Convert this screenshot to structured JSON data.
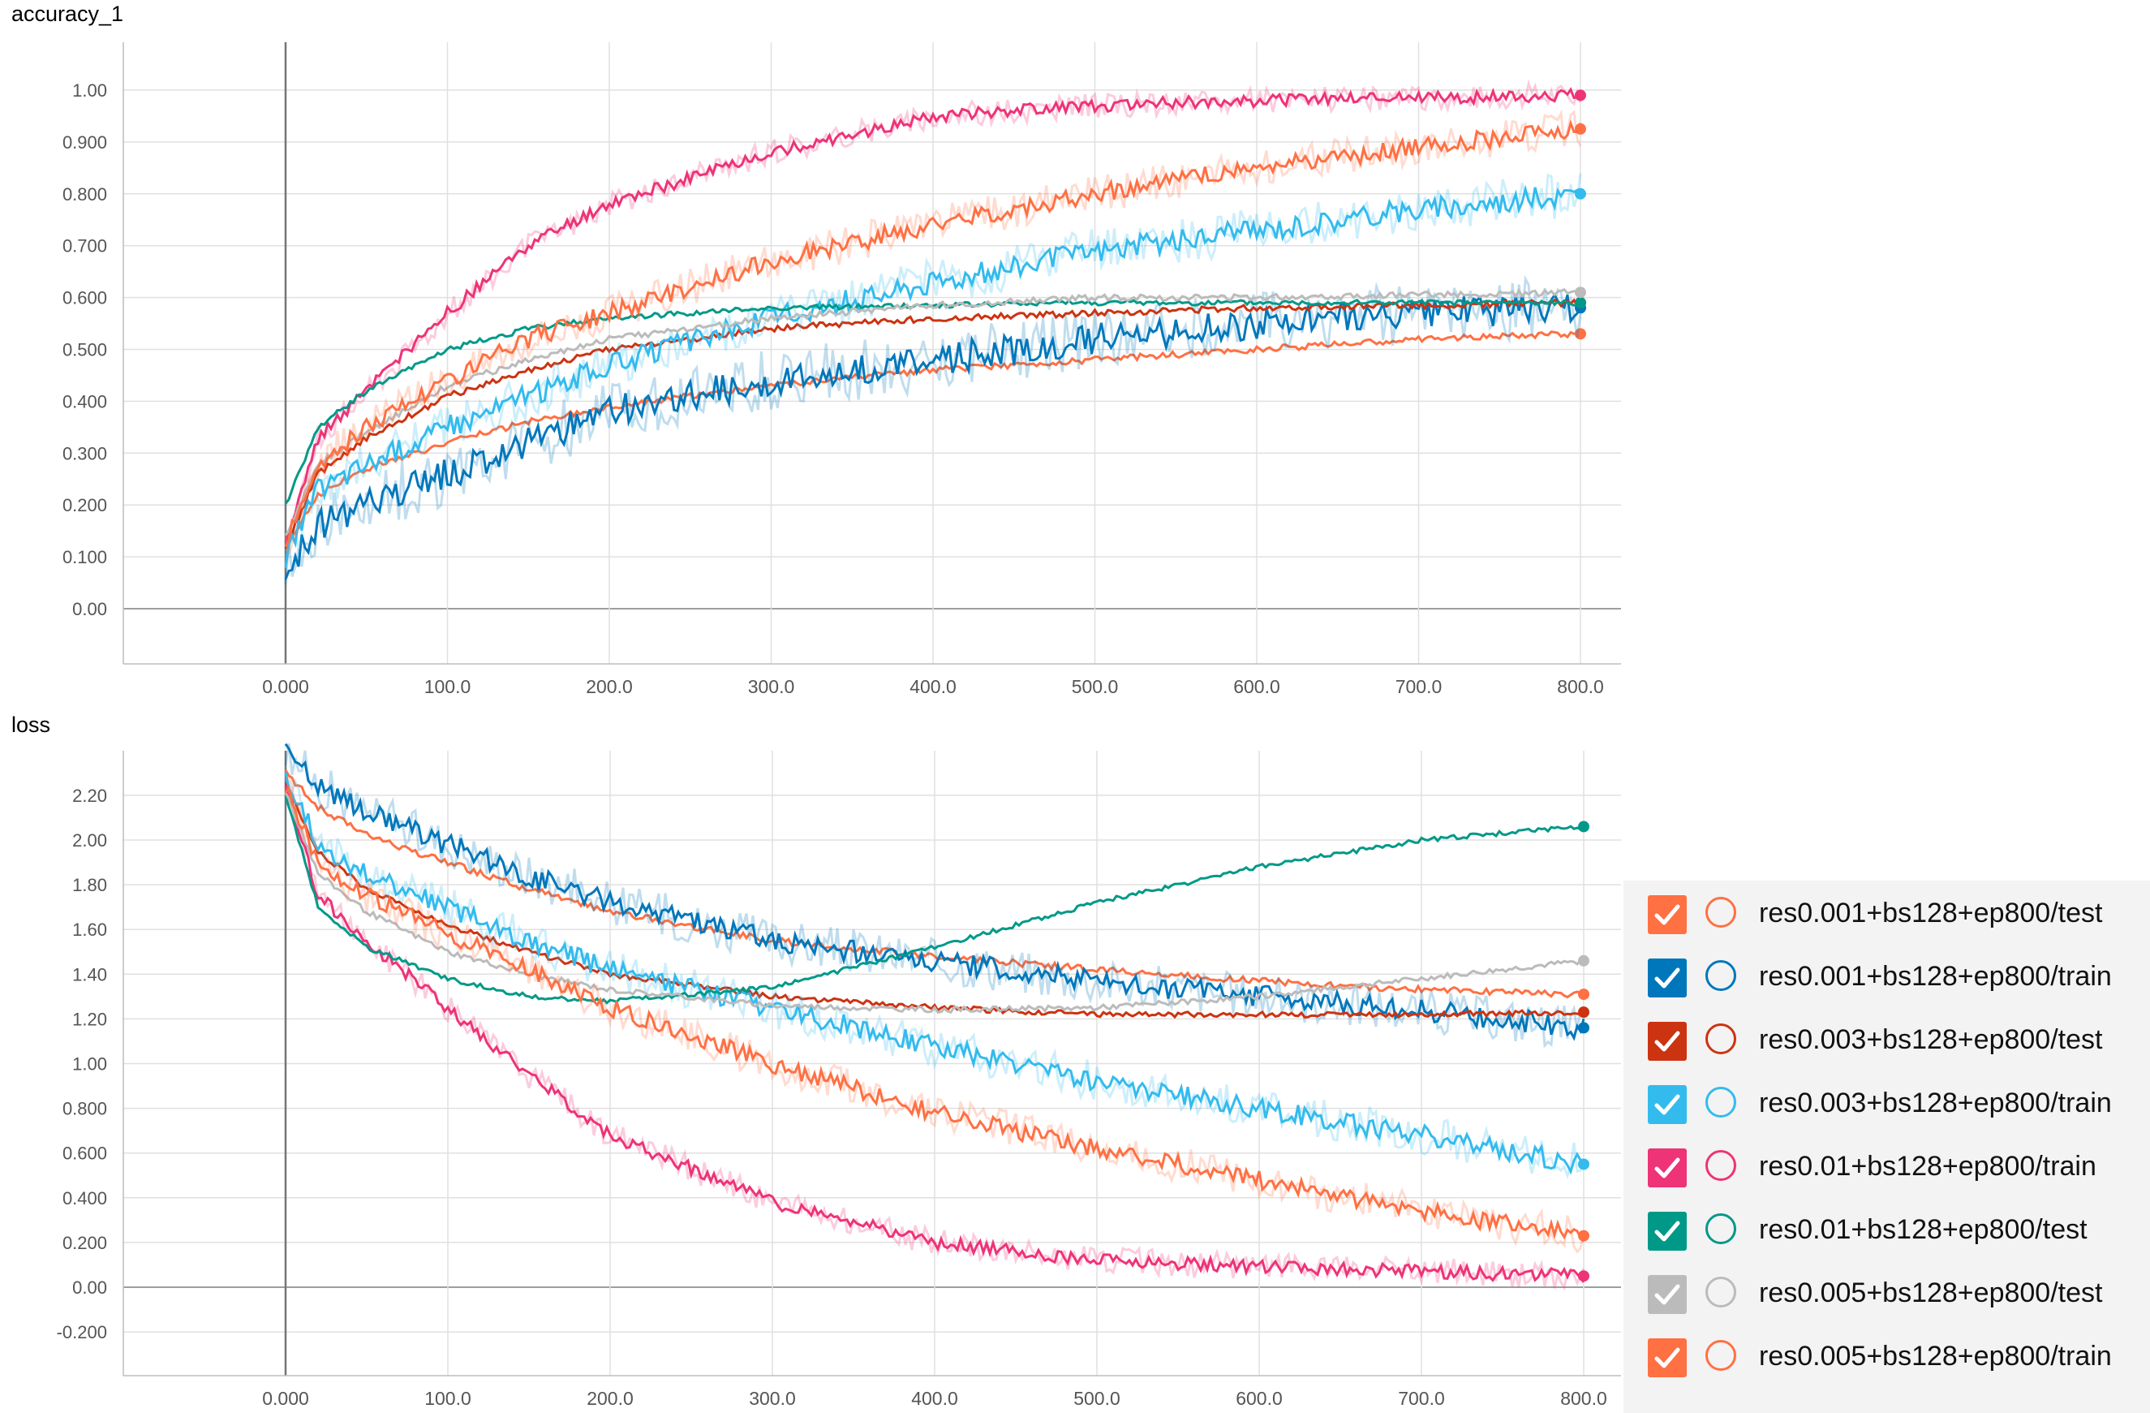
{
  "chart_data": [
    {
      "type": "line",
      "title": "accuracy_1",
      "x_ticks": [
        "0.000",
        "100.0",
        "200.0",
        "300.0",
        "400.0",
        "500.0",
        "600.0",
        "700.0",
        "800.0"
      ],
      "y_ticks": [
        "0.00",
        "0.100",
        "0.200",
        "0.300",
        "0.400",
        "0.500",
        "0.600",
        "0.700",
        "0.800",
        "0.900",
        "1.00"
      ],
      "xlim": [
        -100,
        870
      ],
      "ylim": [
        -0.1,
        1.1
      ],
      "grid": true,
      "series": [
        {
          "name": "res0.001+bs128+ep800/test",
          "x": [
            0,
            20,
            50,
            100,
            150,
            200,
            300,
            400,
            500,
            600,
            700,
            800
          ],
          "y": [
            0.12,
            0.22,
            0.27,
            0.32,
            0.36,
            0.39,
            0.43,
            0.46,
            0.48,
            0.5,
            0.52,
            0.53
          ]
        },
        {
          "name": "res0.001+bs128+ep800/train",
          "x": [
            0,
            20,
            50,
            100,
            150,
            200,
            300,
            400,
            500,
            600,
            700,
            800
          ],
          "y": [
            0.07,
            0.16,
            0.2,
            0.26,
            0.32,
            0.38,
            0.44,
            0.48,
            0.52,
            0.55,
            0.57,
            0.58
          ]
        },
        {
          "name": "res0.003+bs128+ep800/test",
          "x": [
            0,
            20,
            50,
            100,
            150,
            200,
            300,
            400,
            500,
            600,
            700,
            800
          ],
          "y": [
            0.12,
            0.26,
            0.33,
            0.41,
            0.46,
            0.5,
            0.54,
            0.56,
            0.57,
            0.58,
            0.585,
            0.59
          ]
        },
        {
          "name": "res0.003+bs128+ep800/train",
          "x": [
            0,
            20,
            50,
            100,
            150,
            200,
            300,
            400,
            500,
            600,
            700,
            800
          ],
          "y": [
            0.1,
            0.23,
            0.28,
            0.35,
            0.41,
            0.47,
            0.56,
            0.63,
            0.69,
            0.73,
            0.77,
            0.8
          ]
        },
        {
          "name": "res0.01+bs128+ep800/train",
          "x": [
            0,
            20,
            50,
            100,
            150,
            200,
            300,
            400,
            500,
            600,
            700,
            800
          ],
          "y": [
            0.12,
            0.33,
            0.42,
            0.57,
            0.7,
            0.78,
            0.88,
            0.95,
            0.97,
            0.98,
            0.985,
            0.99
          ]
        },
        {
          "name": "res0.01+bs128+ep800/test",
          "x": [
            0,
            20,
            50,
            100,
            150,
            200,
            300,
            400,
            500,
            600,
            700,
            800
          ],
          "y": [
            0.2,
            0.35,
            0.42,
            0.5,
            0.54,
            0.56,
            0.58,
            0.585,
            0.59,
            0.59,
            0.59,
            0.59
          ]
        },
        {
          "name": "res0.005+bs128+ep800/test",
          "x": [
            0,
            20,
            50,
            100,
            150,
            200,
            300,
            400,
            500,
            600,
            700,
            800
          ],
          "y": [
            0.14,
            0.28,
            0.34,
            0.43,
            0.48,
            0.52,
            0.56,
            0.585,
            0.6,
            0.6,
            0.605,
            0.61
          ]
        },
        {
          "name": "res0.005+bs128+ep800/train",
          "x": [
            0,
            20,
            50,
            100,
            150,
            200,
            300,
            400,
            500,
            600,
            700,
            800
          ],
          "y": [
            0.12,
            0.28,
            0.35,
            0.44,
            0.52,
            0.57,
            0.67,
            0.74,
            0.8,
            0.85,
            0.89,
            0.925
          ]
        }
      ]
    },
    {
      "type": "line",
      "title": "loss",
      "x_ticks": [
        "0.000",
        "100.0",
        "200.0",
        "300.0",
        "400.0",
        "500.0",
        "600.0",
        "700.0",
        "800.0"
      ],
      "y_ticks": [
        "-0.200",
        "0.00",
        "0.200",
        "0.400",
        "0.600",
        "0.800",
        "1.00",
        "1.20",
        "1.40",
        "1.60",
        "1.80",
        "2.00",
        "2.20"
      ],
      "xlim": [
        -100,
        870
      ],
      "ylim": [
        -0.4,
        2.4
      ],
      "grid": true,
      "series": [
        {
          "name": "res0.001+bs128+ep800/test",
          "x": [
            0,
            20,
            50,
            100,
            150,
            200,
            300,
            400,
            500,
            600,
            700,
            800
          ],
          "y": [
            2.3,
            2.15,
            2.02,
            1.9,
            1.78,
            1.68,
            1.55,
            1.48,
            1.42,
            1.37,
            1.33,
            1.31
          ]
        },
        {
          "name": "res0.001+bs128+ep800/train",
          "x": [
            0,
            20,
            50,
            100,
            150,
            200,
            300,
            400,
            500,
            600,
            700,
            800
          ],
          "y": [
            2.4,
            2.25,
            2.12,
            1.98,
            1.84,
            1.72,
            1.55,
            1.46,
            1.37,
            1.3,
            1.24,
            1.16
          ]
        },
        {
          "name": "res0.003+bs128+ep800/test",
          "x": [
            0,
            20,
            50,
            100,
            150,
            200,
            300,
            400,
            500,
            600,
            700,
            800
          ],
          "y": [
            2.25,
            1.95,
            1.78,
            1.62,
            1.5,
            1.4,
            1.3,
            1.25,
            1.22,
            1.22,
            1.22,
            1.23
          ]
        },
        {
          "name": "res0.003+bs128+ep800/train",
          "x": [
            0,
            20,
            50,
            100,
            150,
            200,
            300,
            400,
            500,
            600,
            700,
            800
          ],
          "y": [
            2.3,
            1.98,
            1.85,
            1.7,
            1.55,
            1.42,
            1.25,
            1.08,
            0.92,
            0.8,
            0.68,
            0.55
          ]
        },
        {
          "name": "res0.01+bs128+ep800/train",
          "x": [
            0,
            20,
            50,
            100,
            150,
            200,
            300,
            400,
            500,
            600,
            700,
            800
          ],
          "y": [
            2.25,
            1.75,
            1.55,
            1.25,
            0.95,
            0.68,
            0.38,
            0.2,
            0.12,
            0.09,
            0.07,
            0.05
          ]
        },
        {
          "name": "res0.01+bs128+ep800/test",
          "x": [
            0,
            20,
            50,
            100,
            150,
            200,
            300,
            400,
            500,
            600,
            700,
            800
          ],
          "y": [
            2.2,
            1.7,
            1.52,
            1.38,
            1.3,
            1.28,
            1.34,
            1.52,
            1.72,
            1.88,
            2.0,
            2.06
          ]
        },
        {
          "name": "res0.005+bs128+ep800/test",
          "x": [
            0,
            20,
            50,
            100,
            150,
            200,
            300,
            400,
            500,
            600,
            700,
            800
          ],
          "y": [
            2.22,
            1.85,
            1.68,
            1.5,
            1.4,
            1.33,
            1.26,
            1.24,
            1.25,
            1.3,
            1.38,
            1.46
          ]
        },
        {
          "name": "res0.005+bs128+ep800/train",
          "x": [
            0,
            20,
            50,
            100,
            150,
            200,
            300,
            400,
            500,
            600,
            700,
            800
          ],
          "y": [
            2.25,
            1.9,
            1.75,
            1.58,
            1.42,
            1.25,
            1.0,
            0.78,
            0.62,
            0.48,
            0.34,
            0.23
          ]
        }
      ]
    }
  ],
  "legend": [
    {
      "label": "res0.001+bs128+ep800/test",
      "color": "#ff7043"
    },
    {
      "label": "res0.001+bs128+ep800/train",
      "color": "#0077bb"
    },
    {
      "label": "res0.003+bs128+ep800/test",
      "color": "#cc3311"
    },
    {
      "label": "res0.003+bs128+ep800/train",
      "color": "#33bbee"
    },
    {
      "label": "res0.01+bs128+ep800/train",
      "color": "#ee3377"
    },
    {
      "label": "res0.01+bs128+ep800/test",
      "color": "#009988"
    },
    {
      "label": "res0.005+bs128+ep800/test",
      "color": "#bbbbbb"
    },
    {
      "label": "res0.005+bs128+ep800/train",
      "color": "#ff7043"
    }
  ],
  "icons": {
    "checkbox": "checkmark-icon",
    "color_ring": "color-ring-icon"
  }
}
